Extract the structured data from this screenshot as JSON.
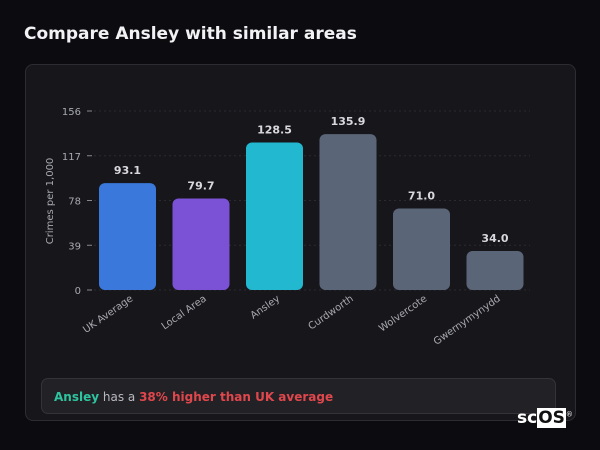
{
  "header": {
    "title": "Compare Ansley with similar areas"
  },
  "chart_data": {
    "type": "bar",
    "ylabel": "Crimes per 1,000",
    "xlabel": "",
    "ylim": [
      0,
      156
    ],
    "yticks": [
      0,
      39,
      78,
      117,
      156
    ],
    "grid": true,
    "categories": [
      "UK Average",
      "Local Area",
      "Ansley",
      "Curdworth",
      "Wolvercote",
      "Gwernymynydd"
    ],
    "values": [
      93.1,
      79.7,
      128.5,
      135.9,
      71.0,
      34.0
    ],
    "value_labels": [
      "93.1",
      "79.7",
      "128.5",
      "135.9",
      "71.0",
      "34.0"
    ],
    "colors": [
      "#3a78db",
      "#7b52d6",
      "#21b8d0",
      "#5a6578",
      "#5a6578",
      "#5a6578"
    ]
  },
  "footer": {
    "area": "Ansley",
    "mid": " has a ",
    "comparison": "38% higher than UK average"
  },
  "logo": {
    "text_sc": "sc",
    "text_os": "OS"
  }
}
